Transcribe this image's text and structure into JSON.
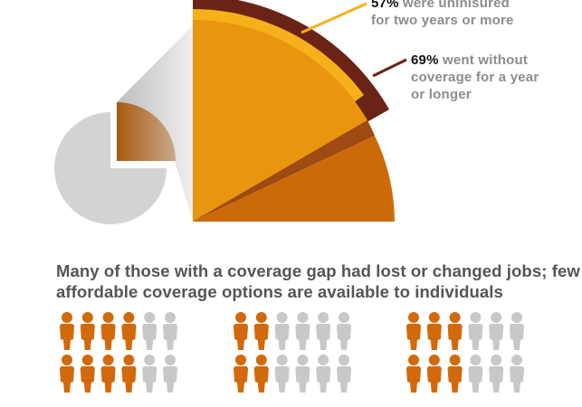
{
  "chart_data": {
    "type": "pie",
    "callouts": [
      {
        "value": "57%",
        "text": "were uninisured for two years or more",
        "line1": "were uninisured",
        "line2": "for two years or more",
        "color": "#F5B01A"
      },
      {
        "value": "69%",
        "text": "went without coverage for a year or longer",
        "line1": "went without",
        "line2": "coverage for a year",
        "line3": "or longer",
        "color": "#6B2316"
      }
    ],
    "pictograms": [
      {
        "filled": 4,
        "total": 6,
        "rows": 2
      },
      {
        "filled": 2,
        "total": 6,
        "rows": 2
      },
      {
        "filled": 3,
        "total": 6,
        "rows": 2
      }
    ]
  },
  "heading": "Many of those with a coverage gap had lost or changed jobs; few affordable coverage options are available to individuals",
  "colors": {
    "filled": "#D2690A",
    "empty": "#C8C8C8",
    "light_orange": "#E8950F",
    "dark_orange": "#CC6A0A",
    "gray_pie": "#D3D3D3"
  }
}
